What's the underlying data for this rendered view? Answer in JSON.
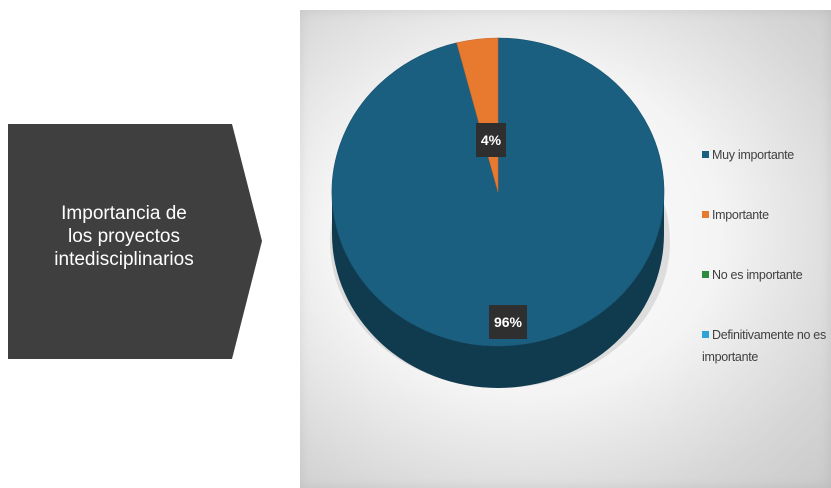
{
  "callout": {
    "text_line1": "Importancia de",
    "text_line2": "los proyectos",
    "text_line3": "intedisciplinarios"
  },
  "chart_data": {
    "type": "pie",
    "style": "3d",
    "title": "",
    "categories": [
      "Muy importante",
      "Importante",
      "No es importante",
      "Definitivamente no es importante"
    ],
    "values": [
      96,
      4,
      0,
      0
    ],
    "data_labels": [
      "96%",
      "4%",
      "",
      ""
    ],
    "colors": [
      "#1a5f80",
      "#e87a30",
      "#2e8b3e",
      "#2fa2d6"
    ],
    "legend_position": "right"
  }
}
